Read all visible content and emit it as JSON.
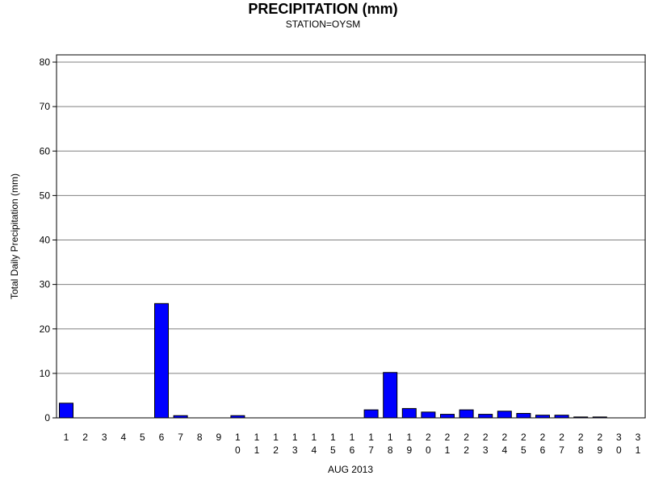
{
  "chart_data": {
    "type": "bar",
    "title": "PRECIPITATION (mm)",
    "subtitle": "STATION=OYSM",
    "xlabel": "AUG 2013",
    "ylabel": "Total Daily Precipitation (mm)",
    "ylim": [
      0,
      80
    ],
    "yticks": [
      0,
      10,
      20,
      30,
      40,
      50,
      60,
      70,
      80
    ],
    "grid": true,
    "bar_color": "#0000ff",
    "categories": [
      1,
      2,
      3,
      4,
      5,
      6,
      7,
      8,
      9,
      10,
      11,
      12,
      13,
      14,
      15,
      16,
      17,
      18,
      19,
      20,
      21,
      22,
      23,
      24,
      25,
      26,
      27,
      28,
      29,
      30,
      31
    ],
    "values": [
      3.3,
      0,
      0,
      0,
      0,
      25.7,
      0.5,
      0,
      0,
      0.5,
      0,
      0,
      0,
      0,
      0,
      0,
      1.8,
      10.2,
      2.1,
      1.3,
      0.8,
      1.8,
      0.8,
      1.5,
      1.0,
      0.6,
      0.6,
      0.2,
      0.2,
      0,
      0
    ]
  }
}
